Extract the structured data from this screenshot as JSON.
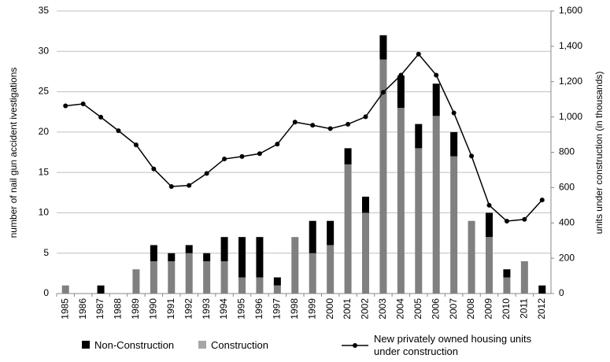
{
  "chart_data": {
    "type": "bar",
    "categories": [
      "1985",
      "1986",
      "1987",
      "1988",
      "1989",
      "1990",
      "1991",
      "1992",
      "1993",
      "1994",
      "1995",
      "1996",
      "1997",
      "1998",
      "1999",
      "2000",
      "2001",
      "2002",
      "2003",
      "2004",
      "2005",
      "2006",
      "2007",
      "2008",
      "2009",
      "2010",
      "2011",
      "2012"
    ],
    "y_label": "number of nail gun accident ivestigations",
    "y2_label": "units under construction (in thousands)",
    "ylim": [
      0,
      35
    ],
    "yticks": [
      0,
      5,
      10,
      15,
      20,
      25,
      30,
      35
    ],
    "y2lim": [
      0,
      1600
    ],
    "y2ticks": [
      0,
      200,
      400,
      600,
      800,
      {
        "value": 1000,
        "label": "1,000"
      },
      {
        "value": 1200,
        "label": "1,200"
      },
      {
        "value": 1400,
        "label": "1,400"
      },
      {
        "value": 1600,
        "label": "1,600"
      }
    ],
    "grid": true,
    "legend": "bottom",
    "stacked": true,
    "series": [
      {
        "name": "Construction",
        "color": "#808080",
        "type": "bar",
        "values": [
          1,
          0,
          0,
          0,
          3,
          4,
          4,
          5,
          4,
          4,
          2,
          2,
          1,
          7,
          5,
          6,
          16,
          10,
          29,
          23,
          18,
          22,
          17,
          9,
          7,
          2,
          4,
          0
        ]
      },
      {
        "name": "Non-Construction",
        "color": "#000000",
        "type": "bar",
        "values": [
          0,
          0,
          1,
          0,
          0,
          2,
          1,
          1,
          1,
          3,
          5,
          5,
          1,
          0,
          4,
          3,
          2,
          2,
          3,
          4,
          3,
          4,
          3,
          0,
          3,
          1,
          0,
          1
        ]
      },
      {
        "name": "New privately owned housing units under construction",
        "color": "#000000",
        "type": "line",
        "axis": "y2",
        "values": [
          1063,
          1074,
          999,
          922,
          842,
          706,
          606,
          612,
          680,
          762,
          776,
          792,
          846,
          971,
          953,
          934,
          959,
          1001,
          1140,
          1237,
          1356,
          1237,
          1023,
          779,
          500,
          410,
          420,
          530
        ]
      }
    ]
  }
}
